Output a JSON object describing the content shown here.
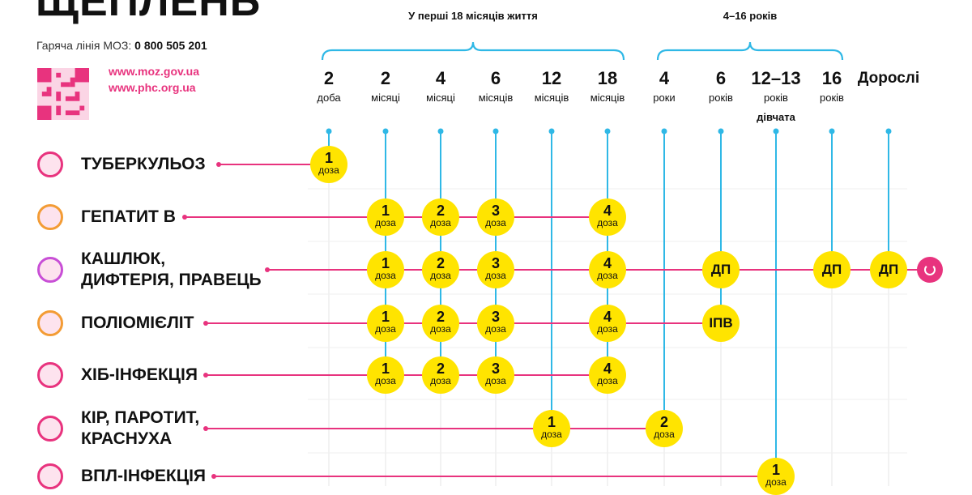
{
  "header": {
    "title": "ЩЕПЛЕНЬ",
    "hotline_label": "Гаряча лінія МОЗ:",
    "hotline_number": "0 800 505 201",
    "links": [
      "www.moz.gov.ua",
      "www.phc.org.ua"
    ]
  },
  "groups": [
    {
      "label": "У перші 18 місяців життя"
    },
    {
      "label": "4–16 років"
    }
  ],
  "columns": [
    {
      "num": "2",
      "unit": "доба"
    },
    {
      "num": "2",
      "unit": "місяці"
    },
    {
      "num": "4",
      "unit": "місяці"
    },
    {
      "num": "6",
      "unit": "місяців"
    },
    {
      "num": "12",
      "unit": "місяців"
    },
    {
      "num": "18",
      "unit": "місяців"
    },
    {
      "num": "4",
      "unit": "роки"
    },
    {
      "num": "6",
      "unit": "років"
    },
    {
      "num": "12–13",
      "unit": "років",
      "unit2": "дівчата"
    },
    {
      "num": "16",
      "unit": "років"
    },
    {
      "num": "Дорослі",
      "unit": ""
    }
  ],
  "rows": [
    {
      "label": [
        "ТУБЕРКУЛЬОЗ"
      ],
      "icon": "tuberculosis-icon",
      "doses": [
        {
          "col": 0,
          "n": "1",
          "u": "доза"
        }
      ]
    },
    {
      "label": [
        "ГЕПАТИТ В"
      ],
      "icon": "hepatitis-b-icon",
      "doses": [
        {
          "col": 1,
          "n": "1",
          "u": "доза"
        },
        {
          "col": 2,
          "n": "2",
          "u": "доза"
        },
        {
          "col": 3,
          "n": "3",
          "u": "доза"
        },
        {
          "col": 5,
          "n": "4",
          "u": "доза"
        }
      ]
    },
    {
      "label": [
        "КАШЛЮК,",
        "ДИФТЕРІЯ, ПРАВЕЦЬ"
      ],
      "icon": "pertussis-icon",
      "endcap": "refresh-icon",
      "doses": [
        {
          "col": 1,
          "n": "1",
          "u": "доза"
        },
        {
          "col": 2,
          "n": "2",
          "u": "доза"
        },
        {
          "col": 3,
          "n": "3",
          "u": "доза"
        },
        {
          "col": 5,
          "n": "4",
          "u": "доза"
        },
        {
          "col": 7,
          "n": "ДП",
          "u": ""
        },
        {
          "col": 9,
          "n": "ДП",
          "u": ""
        },
        {
          "col": 10,
          "n": "ДП",
          "u": ""
        }
      ]
    },
    {
      "label": [
        "ПОЛІОМІЄЛІТ"
      ],
      "icon": "polio-icon",
      "doses": [
        {
          "col": 1,
          "n": "1",
          "u": "доза"
        },
        {
          "col": 2,
          "n": "2",
          "u": "доза"
        },
        {
          "col": 3,
          "n": "3",
          "u": "доза"
        },
        {
          "col": 5,
          "n": "4",
          "u": "доза"
        },
        {
          "col": 7,
          "n": "ІПВ",
          "u": ""
        }
      ]
    },
    {
      "label": [
        "ХІБ-ІНФЕКЦІЯ"
      ],
      "icon": "hib-icon",
      "doses": [
        {
          "col": 1,
          "n": "1",
          "u": "доза"
        },
        {
          "col": 2,
          "n": "2",
          "u": "доза"
        },
        {
          "col": 3,
          "n": "3",
          "u": "доза"
        },
        {
          "col": 5,
          "n": "4",
          "u": "доза"
        }
      ]
    },
    {
      "label": [
        "КІР, ПАРОТИТ,",
        "КРАСНУХА"
      ],
      "icon": "measles-icon",
      "doses": [
        {
          "col": 4,
          "n": "1",
          "u": "доза"
        },
        {
          "col": 6,
          "n": "2",
          "u": "доза"
        }
      ]
    },
    {
      "label": [
        "ВПЛ-ІНФЕКЦІЯ"
      ],
      "icon": "hpv-icon",
      "doses": [
        {
          "col": 8,
          "n": "1",
          "u": "доза"
        }
      ]
    }
  ],
  "colors": {
    "accent": "#e8337e",
    "line_blue": "#2fb8e6",
    "dose": "#ffe400"
  }
}
